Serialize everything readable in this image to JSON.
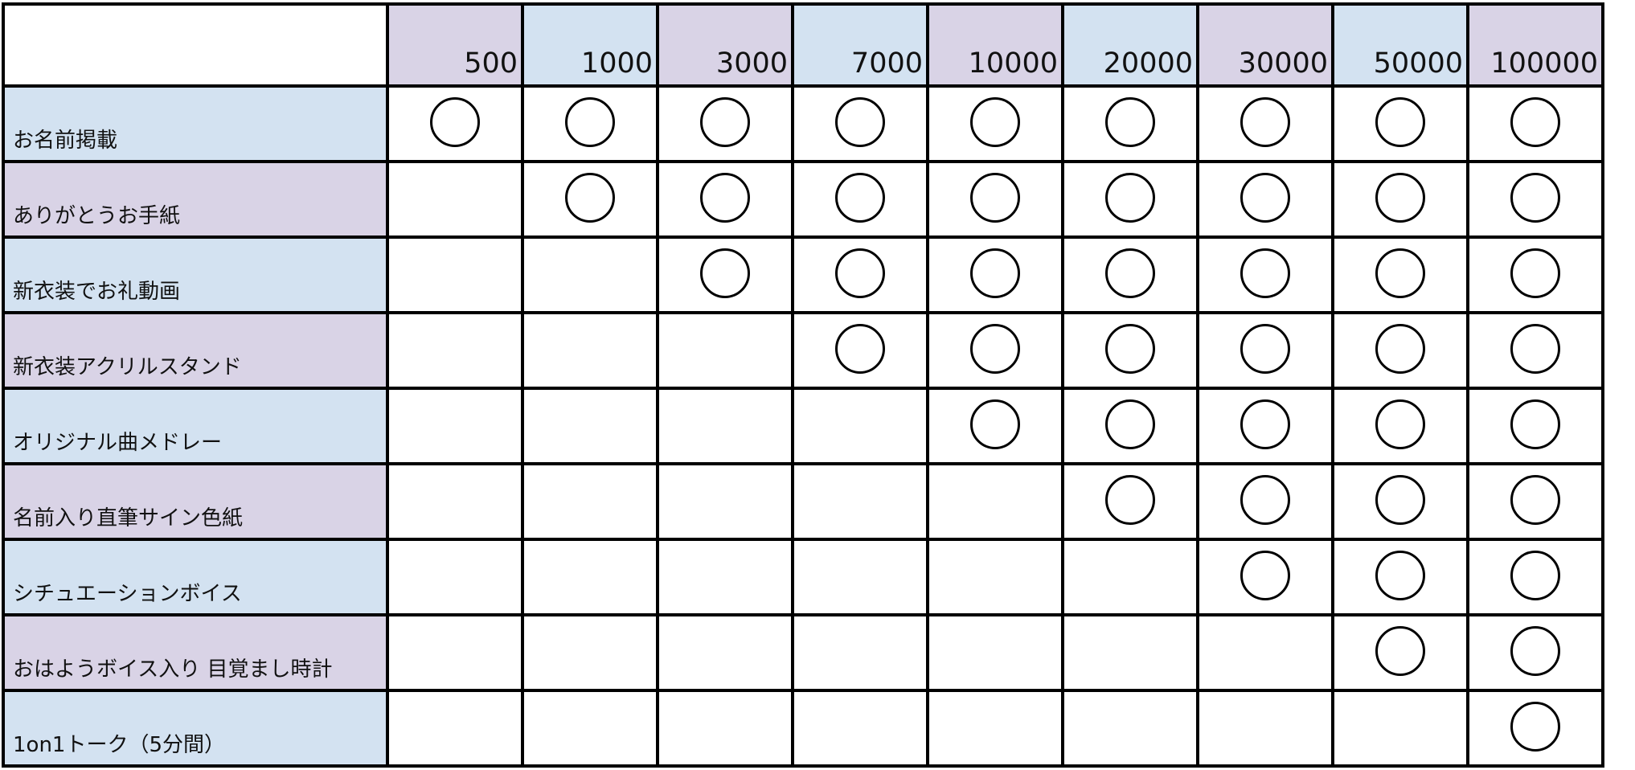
{
  "colors": {
    "purple": "#d9d3e6",
    "blue": "#d3e2f1"
  },
  "columns": [
    "500",
    "1000",
    "3000",
    "7000",
    "10000",
    "20000",
    "30000",
    "50000",
    "100000"
  ],
  "rows": [
    {
      "label": "お名前掲載",
      "marks": [
        true,
        true,
        true,
        true,
        true,
        true,
        true,
        true,
        true
      ]
    },
    {
      "label": "ありがとうお手紙",
      "marks": [
        false,
        true,
        true,
        true,
        true,
        true,
        true,
        true,
        true
      ]
    },
    {
      "label": "新衣装でお礼動画",
      "marks": [
        false,
        false,
        true,
        true,
        true,
        true,
        true,
        true,
        true
      ]
    },
    {
      "label": "新衣装アクリルスタンド",
      "marks": [
        false,
        false,
        false,
        true,
        true,
        true,
        true,
        true,
        true
      ]
    },
    {
      "label": "オリジナル曲メドレー",
      "marks": [
        false,
        false,
        false,
        false,
        true,
        true,
        true,
        true,
        true
      ]
    },
    {
      "label": "名前入り直筆サイン色紙",
      "marks": [
        false,
        false,
        false,
        false,
        false,
        true,
        true,
        true,
        true
      ]
    },
    {
      "label": "シチュエーションボイス",
      "marks": [
        false,
        false,
        false,
        false,
        false,
        false,
        true,
        true,
        true
      ]
    },
    {
      "label": "おはようボイス入り  目覚まし時計",
      "marks": [
        false,
        false,
        false,
        false,
        false,
        false,
        false,
        true,
        true
      ]
    },
    {
      "label": "1on1トーク（5分間）",
      "marks": [
        false,
        false,
        false,
        false,
        false,
        false,
        false,
        false,
        true
      ]
    }
  ],
  "mark_icon": "circle-mark-icon"
}
